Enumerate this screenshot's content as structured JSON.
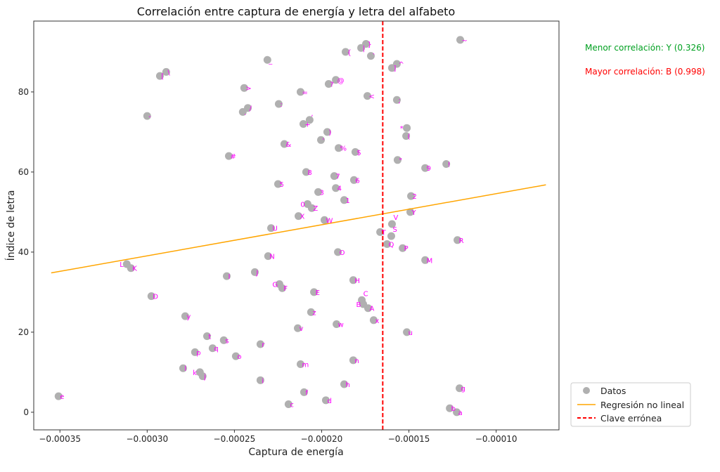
{
  "chart_data": {
    "type": "scatter",
    "title": "Correlación entre captura de energía y letra del alfabeto",
    "xlabel": "Captura de energía",
    "ylabel": "Índice de letra",
    "xlim": [
      -0.000365,
      -6.4e-05
    ],
    "ylim": [
      -4.4,
      97.7
    ],
    "xticks": [
      -0.00035,
      -0.0003,
      -0.00025,
      -0.0002,
      -0.00015,
      -0.0001
    ],
    "xtick_labels": [
      "−0.00035",
      "−0.00030",
      "−0.00025",
      "−0.00020",
      "−0.00015",
      "−0.00010"
    ],
    "yticks": [
      0,
      20,
      40,
      60,
      80
    ],
    "ytick_labels": [
      "0",
      "20",
      "40",
      "60",
      "80"
    ],
    "grid": false,
    "legend_position": "bottom-right",
    "colors": {
      "points": "#b0b0b0",
      "labels": "#ff00ff",
      "regression": "#ffa500",
      "threshold": "#ff0000",
      "min_corr": "#00a020",
      "max_corr": "#ff0000"
    },
    "series": [
      {
        "name": "Datos",
        "kind": "scatter",
        "points": [
          [
            "a",
            -0.0001226,
            0
          ],
          [
            "b",
            -0.0001266,
            1
          ],
          [
            "c",
            -0.000219,
            2
          ],
          [
            "d",
            -0.0001976,
            3
          ],
          [
            "e",
            -0.0003508,
            4
          ],
          [
            "f",
            -0.0002101,
            5
          ],
          [
            "g",
            -0.000121,
            6
          ],
          [
            "h",
            -0.0001871,
            7
          ],
          [
            "i",
            -0.0002351,
            8
          ],
          [
            "j",
            -0.0002682,
            9
          ],
          [
            "k",
            -0.0002698,
            10
          ],
          [
            "l",
            -0.0002794,
            11
          ],
          [
            "m",
            -0.0002121,
            12
          ],
          [
            "n",
            -0.0001819,
            13
          ],
          [
            "o",
            -0.0002492,
            14
          ],
          [
            "p",
            -0.0002726,
            15
          ],
          [
            "q",
            -0.0002625,
            16
          ],
          [
            "r",
            -0.0002351,
            17
          ],
          [
            "s",
            -0.0002561,
            18
          ],
          [
            "t",
            -0.0002657,
            19
          ],
          [
            "u",
            -0.0001512,
            20
          ],
          [
            "v",
            -0.0002137,
            21
          ],
          [
            "w",
            -0.0001915,
            22
          ],
          [
            "x",
            -0.0001702,
            23
          ],
          [
            "y",
            -0.0002782,
            24
          ],
          [
            "z",
            -0.0002061,
            25
          ],
          [
            "A",
            -0.0001734,
            26
          ],
          [
            "B",
            -0.0001762,
            27
          ],
          [
            "C",
            -0.000177,
            28
          ],
          [
            "D",
            -0.0002976,
            29
          ],
          [
            "E",
            -0.0002044,
            30
          ],
          [
            "F",
            -0.0002226,
            31
          ],
          [
            "G",
            -0.0002242,
            32
          ],
          [
            "H",
            -0.0001819,
            33
          ],
          [
            "I",
            -0.0002544,
            34
          ],
          [
            "J",
            -0.0002383,
            35
          ],
          [
            "K",
            -0.0003093,
            36
          ],
          [
            "L",
            -0.0003117,
            37
          ],
          [
            "M",
            -0.0001407,
            38
          ],
          [
            "N",
            -0.0002307,
            39
          ],
          [
            "O",
            -0.0001907,
            40
          ],
          [
            "P",
            -0.0001536,
            41
          ],
          [
            "Q",
            -0.0001625,
            42
          ],
          [
            "R",
            -0.0001222,
            43
          ],
          [
            "S",
            -0.0001601,
            44
          ],
          [
            "T",
            -0.0001665,
            45
          ],
          [
            "U",
            -0.000229,
            46
          ],
          [
            "V",
            -0.0001597,
            47
          ],
          [
            "W",
            -0.0001984,
            48
          ],
          [
            "X",
            -0.0002133,
            49
          ],
          [
            "Y",
            -0.0001492,
            50
          ],
          [
            "Z",
            -0.0002057,
            51
          ],
          [
            "0",
            -0.0002081,
            52
          ],
          [
            "1",
            -0.0001871,
            53
          ],
          [
            "2",
            -0.0001488,
            54
          ],
          [
            "3",
            -0.000202,
            55
          ],
          [
            "4",
            -0.0001919,
            56
          ],
          [
            "5",
            -0.000225,
            57
          ],
          [
            "6",
            -0.0001815,
            58
          ],
          [
            "7",
            -0.0001928,
            59
          ],
          [
            "8",
            -0.0002089,
            60
          ],
          [
            "9",
            -0.0001407,
            61
          ],
          [
            "!",
            -0.0001286,
            62
          ],
          [
            "\"",
            -0.0001565,
            63
          ],
          [
            "#",
            -0.0002532,
            64
          ],
          [
            "$",
            -0.0001807,
            65
          ],
          [
            "%",
            -0.0001903,
            66
          ],
          [
            "&",
            -0.0002214,
            67
          ],
          [
            "'",
            -0.0002004,
            68
          ],
          [
            "(",
            -0.0001516,
            69
          ],
          [
            ")",
            -0.0001968,
            70
          ],
          [
            "*",
            -0.0001512,
            71
          ],
          [
            "+",
            -0.0002105,
            72
          ],
          [
            ",",
            -0.0002069,
            73
          ],
          [
            "-",
            -0.0003,
            74
          ],
          [
            ".",
            -0.0002452,
            75
          ],
          [
            "/",
            -0.0002423,
            76
          ],
          [
            ":",
            -0.0002246,
            77
          ],
          [
            ";",
            -0.0001569,
            78
          ],
          [
            "<",
            -0.0001738,
            79
          ],
          [
            "=",
            -0.0002121,
            80
          ],
          [
            ">",
            -0.0002444,
            81
          ],
          [
            "?",
            -0.000196,
            82
          ],
          [
            "@",
            -0.0001919,
            83
          ],
          [
            "[",
            -0.0002927,
            84
          ],
          [
            "\\",
            -0.0002891,
            85
          ],
          [
            "]",
            -0.0001597,
            86
          ],
          [
            "^",
            -0.0001569,
            87
          ],
          [
            "_",
            -0.0002311,
            88
          ],
          [
            "`",
            -0.0001718,
            89
          ],
          [
            "{",
            -0.0001863,
            90
          ],
          [
            "|",
            -0.0001774,
            91
          ],
          [
            "}",
            -0.0001746,
            92
          ],
          [
            "~",
            -0.0001206,
            93
          ]
        ]
      },
      {
        "name": "Regresión no lineal",
        "kind": "line",
        "x": [
          -0.000355,
          -7.15e-05
        ],
        "y": [
          34.8,
          56.8
        ]
      },
      {
        "name": "Clave errónea",
        "kind": "vline",
        "x": -0.000165
      }
    ],
    "annotations": {
      "min_corr": "Menor correlación: Y (0.326)",
      "max_corr": "Mayor correlación: B (0.998)"
    }
  }
}
